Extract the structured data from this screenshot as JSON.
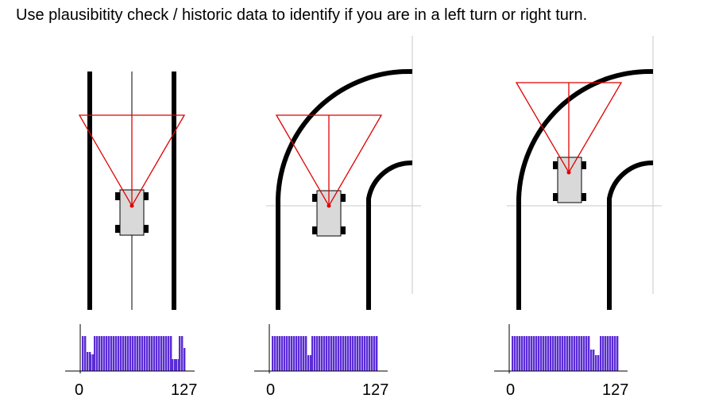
{
  "caption": "Use plausibitity check / historic data to identify if you are in a left turn or right turn.",
  "colors": {
    "track": "#000000",
    "sensor_fov": "#e00000",
    "car_body": "#d9d9d9",
    "histogram_bars": "#5a2bd6",
    "reference_line": "#c8c8c8"
  },
  "panels": [
    {
      "scenario": "straight",
      "histogram": {
        "axis_start": "0",
        "axis_end": "127"
      }
    },
    {
      "scenario": "curve-entry",
      "histogram": {
        "axis_start": "0",
        "axis_end": "127"
      }
    },
    {
      "scenario": "curve-inside",
      "histogram": {
        "axis_start": "0",
        "axis_end": "127"
      }
    }
  ]
}
